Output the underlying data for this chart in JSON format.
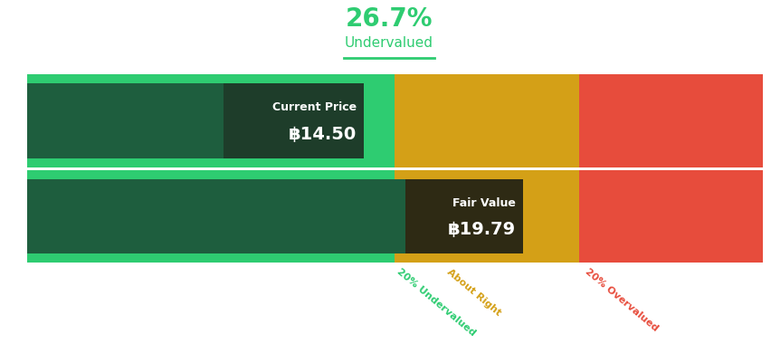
{
  "percent_text": "26.7%",
  "percent_color": "#2ecc71",
  "undervalued_label": "Undervalued",
  "undervalued_color": "#2ecc71",
  "current_price_label": "Current Price",
  "current_price_value": "฿14.50",
  "fair_value_label": "Fair Value",
  "fair_value_value": "฿19.79",
  "current_price": 14.5,
  "fair_value": 19.79,
  "bg_color": "#ffffff",
  "bar_green_light": "#2ecc71",
  "bar_green_dark": "#1e5e3e",
  "bar_yellow": "#d4a017",
  "bar_red": "#e74c3c",
  "label_20_under": "20% Undervalued",
  "label_about_right": "About Right",
  "label_20_over": "20% Overvalued",
  "label_under_color": "#2ecc71",
  "label_about_color": "#d4a017",
  "label_over_color": "#e74c3c",
  "divider_line_color": "#2ecc71",
  "price_box_color": "#1e3d2a",
  "fair_box_color": "#2e2a14"
}
